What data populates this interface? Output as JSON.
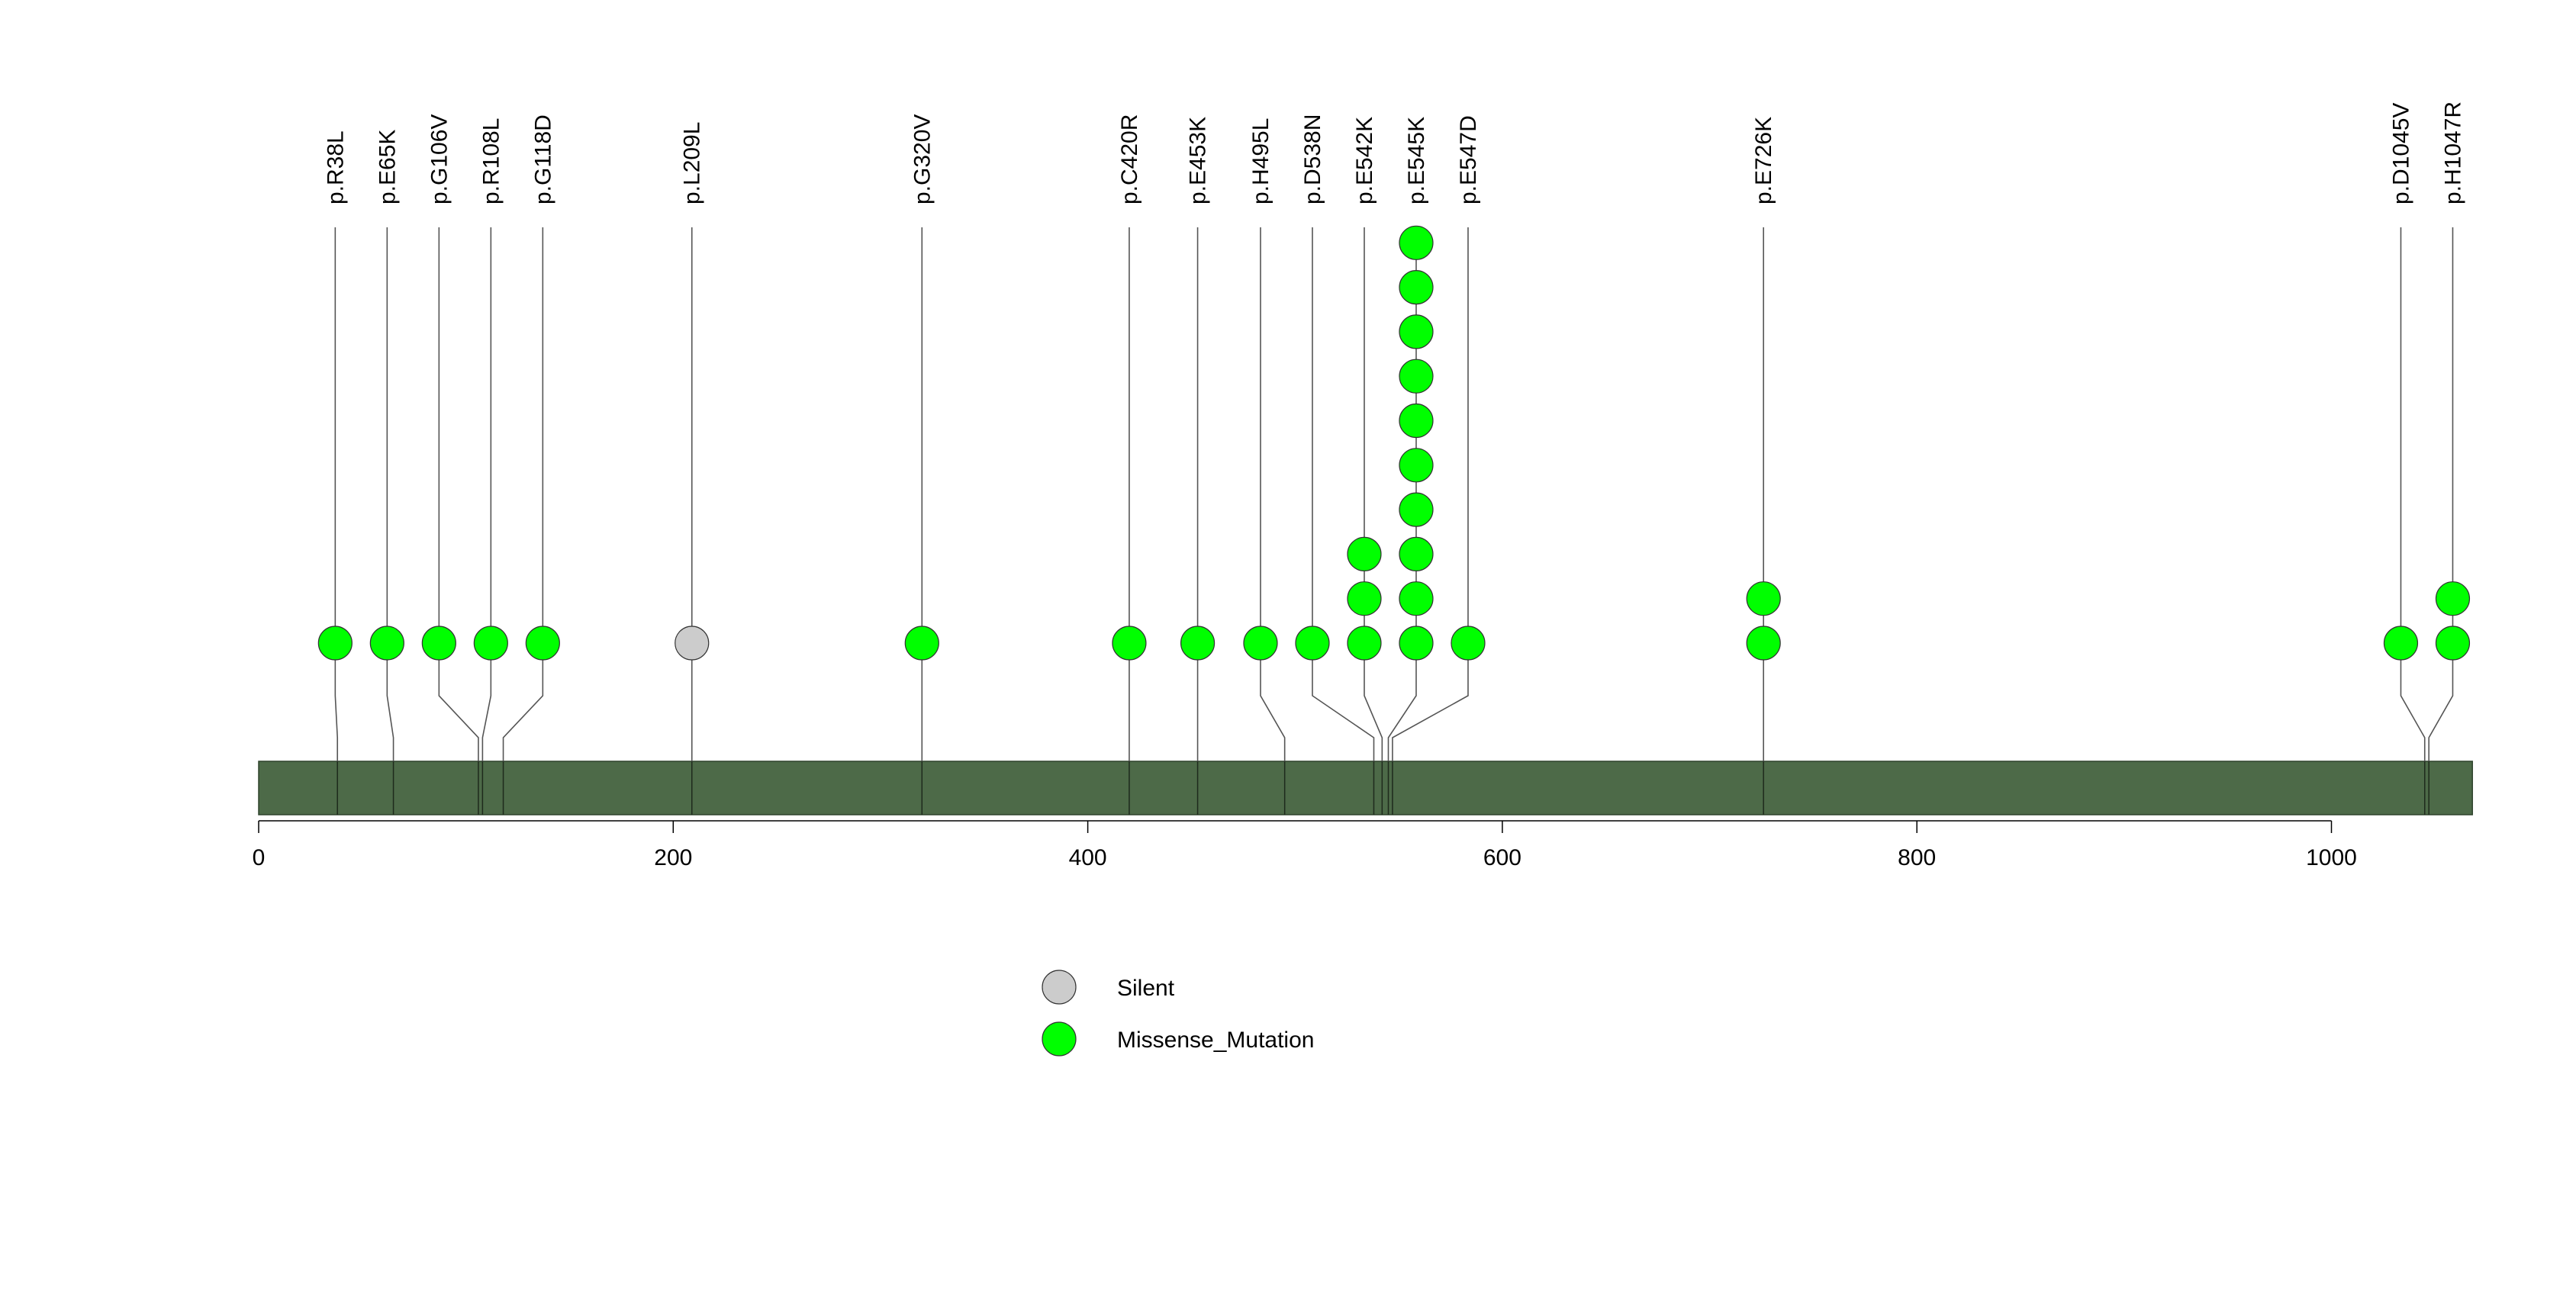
{
  "chart_data": {
    "type": "lollipop",
    "title": "",
    "xlabel": "",
    "ylabel": "",
    "xlim": [
      0,
      1068
    ],
    "protein_length": 1068,
    "x_ticks": [
      0,
      200,
      400,
      600,
      800,
      1000
    ],
    "x_tick_labels": [
      "0",
      "200",
      "400",
      "600",
      "800",
      "1000"
    ],
    "colors": {
      "protein_bar": "#4d6a48",
      "Missense_Mutation": "#00ff00",
      "Silent": "#cccccc",
      "stem": "#555555",
      "outline": "#333333"
    },
    "mutations": [
      {
        "label": "p.R38L",
        "position": 38,
        "count": 1,
        "type": "Missense_Mutation"
      },
      {
        "label": "p.E65K",
        "position": 65,
        "count": 1,
        "type": "Missense_Mutation"
      },
      {
        "label": "p.G106V",
        "position": 106,
        "count": 1,
        "type": "Missense_Mutation"
      },
      {
        "label": "p.R108L",
        "position": 108,
        "count": 1,
        "type": "Missense_Mutation"
      },
      {
        "label": "p.G118D",
        "position": 118,
        "count": 1,
        "type": "Missense_Mutation"
      },
      {
        "label": "p.L209L",
        "position": 209,
        "count": 1,
        "type": "Silent"
      },
      {
        "label": "p.G320V",
        "position": 320,
        "count": 1,
        "type": "Missense_Mutation"
      },
      {
        "label": "p.C420R",
        "position": 420,
        "count": 1,
        "type": "Missense_Mutation"
      },
      {
        "label": "p.E453K",
        "position": 453,
        "count": 1,
        "type": "Missense_Mutation"
      },
      {
        "label": "p.H495L",
        "position": 495,
        "count": 1,
        "type": "Missense_Mutation"
      },
      {
        "label": "p.D538N",
        "position": 538,
        "count": 1,
        "type": "Missense_Mutation"
      },
      {
        "label": "p.E542K",
        "position": 542,
        "count": 3,
        "type": "Missense_Mutation"
      },
      {
        "label": "p.E545K",
        "position": 545,
        "count": 10,
        "type": "Missense_Mutation"
      },
      {
        "label": "p.E547D",
        "position": 547,
        "count": 1,
        "type": "Missense_Mutation"
      },
      {
        "label": "p.E726K",
        "position": 726,
        "count": 2,
        "type": "Missense_Mutation"
      },
      {
        "label": "p.D1045V",
        "position": 1045,
        "count": 1,
        "type": "Missense_Mutation"
      },
      {
        "label": "p.H1047R",
        "position": 1047,
        "count": 2,
        "type": "Missense_Mutation"
      }
    ],
    "legend": {
      "placement": "bottom-center",
      "entries": [
        {
          "label": "Silent",
          "type": "Silent"
        },
        {
          "label": "Missense_Mutation",
          "type": "Missense_Mutation"
        }
      ]
    }
  }
}
